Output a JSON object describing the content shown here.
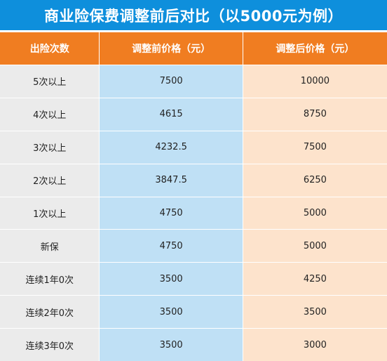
{
  "title": "商业险保费调整前后对比（以5000元为例）",
  "headers": [
    "出险次数",
    "调整前价格（元）",
    "调整后价格（元）"
  ],
  "rows": [
    {
      "count": "5次以上",
      "before": "7500",
      "after": "10000"
    },
    {
      "count": "4次以上",
      "before": "4615",
      "after": "8750"
    },
    {
      "count": "3次以上",
      "before": "4232.5",
      "after": "7500"
    },
    {
      "count": "2次以上",
      "before": "3847.5",
      "after": "6250"
    },
    {
      "count": "1次以上",
      "before": "4750",
      "after": "5000"
    },
    {
      "count": "新保",
      "before": "4750",
      "after": "5000"
    },
    {
      "count": "连续1年0次",
      "before": "3500",
      "after": "4250"
    },
    {
      "count": "连续2年0次",
      "before": "3500",
      "after": "3500"
    },
    {
      "count": "连续3年0次",
      "before": "3500",
      "after": "3000"
    }
  ],
  "colors": {
    "title_bg": "#0e8fdc",
    "header_bg": "#f07d21",
    "col1_bg": "#ebebeb",
    "col2_bg": "#bfe0f5",
    "col3_bg": "#fde3cc"
  }
}
